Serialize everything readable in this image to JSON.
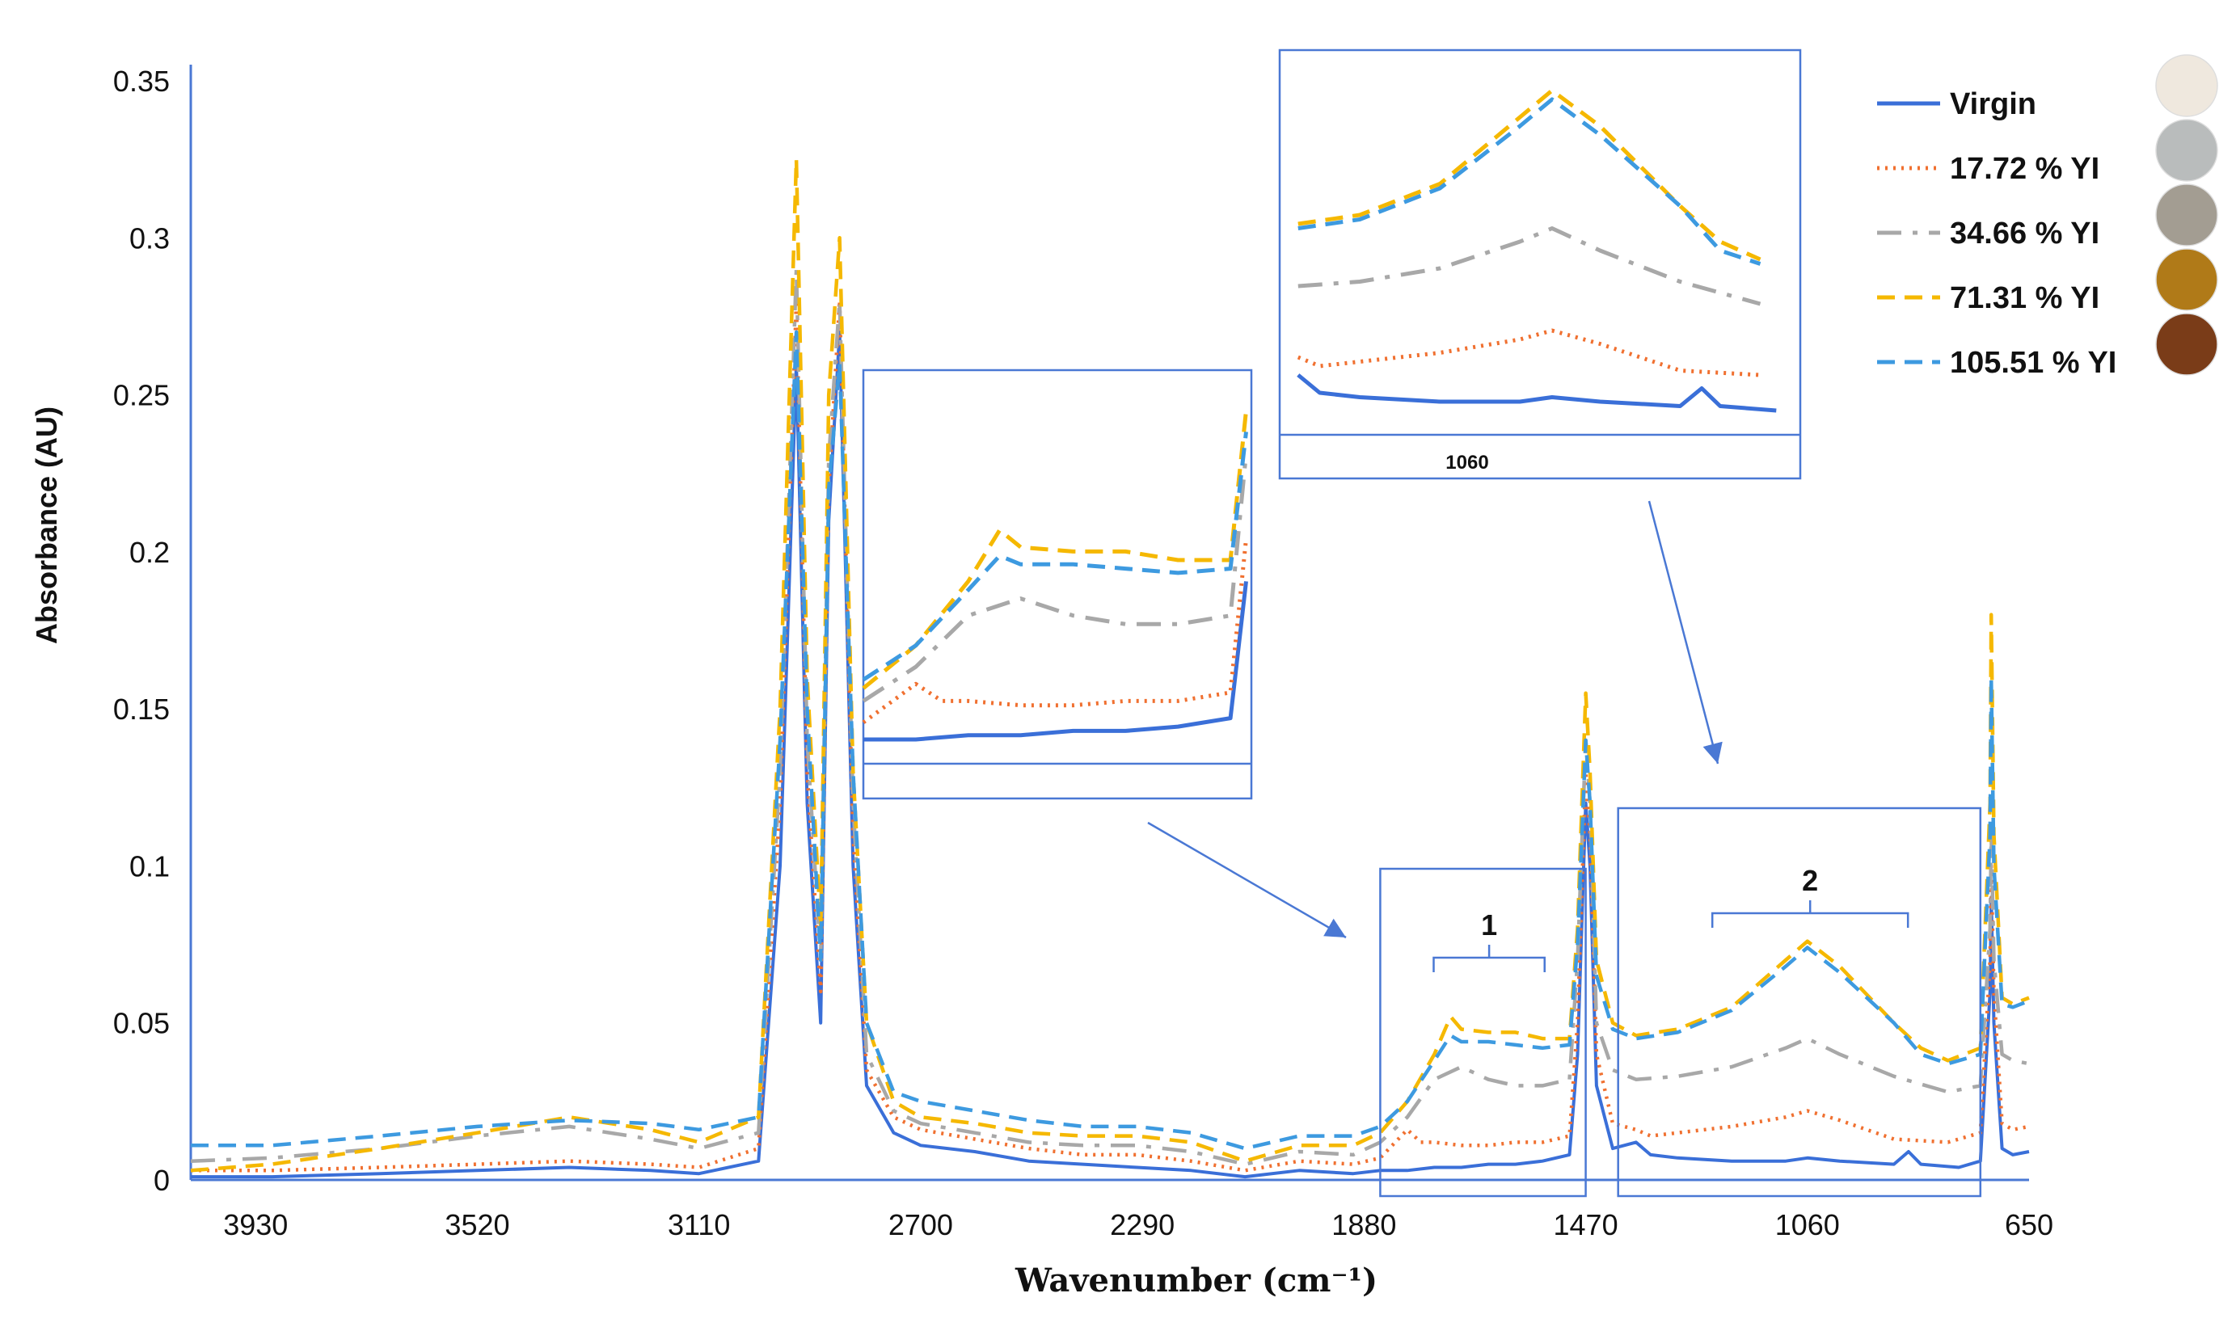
{
  "chart_data": {
    "type": "line",
    "title": "",
    "xlabel": "Wavenumber (cm⁻¹)",
    "ylabel": "Absorbance (AU)",
    "xlim": [
      4050,
      650
    ],
    "ylim": [
      0,
      0.35
    ],
    "x_reversed": true,
    "x_ticks": [
      3930,
      3520,
      3110,
      2700,
      2290,
      1880,
      1470,
      1060,
      650
    ],
    "y_ticks": [
      0,
      0.05,
      0.1,
      0.15,
      0.2,
      0.25,
      0.3,
      0.35
    ],
    "y_tick_labels": [
      "0",
      "0.05",
      "0.1",
      "0.15",
      "0.2",
      "0.25",
      "0.3",
      "0.35"
    ],
    "x_tick_labels": [
      "3930",
      "3520",
      "3110",
      "2700",
      "2290",
      "1880",
      "1470",
      "1060",
      "650"
    ],
    "legend_position": "top-right",
    "series": [
      {
        "name": "Virgin",
        "color": "#3a6fd8",
        "dash": "solid",
        "sample_color": "#efe8de",
        "points": [
          [
            4050,
            0.001
          ],
          [
            3900,
            0.001
          ],
          [
            3700,
            0.002
          ],
          [
            3520,
            0.003
          ],
          [
            3350,
            0.004
          ],
          [
            3200,
            0.003
          ],
          [
            3110,
            0.002
          ],
          [
            3000,
            0.006
          ],
          [
            2960,
            0.1
          ],
          [
            2930,
            0.26
          ],
          [
            2910,
            0.12
          ],
          [
            2885,
            0.05
          ],
          [
            2870,
            0.21
          ],
          [
            2850,
            0.27
          ],
          [
            2825,
            0.1
          ],
          [
            2800,
            0.03
          ],
          [
            2750,
            0.015
          ],
          [
            2700,
            0.011
          ],
          [
            2600,
            0.009
          ],
          [
            2500,
            0.006
          ],
          [
            2400,
            0.005
          ],
          [
            2300,
            0.004
          ],
          [
            2200,
            0.003
          ],
          [
            2100,
            0.001
          ],
          [
            2000,
            0.003
          ],
          [
            1900,
            0.002
          ],
          [
            1850,
            0.003
          ],
          [
            1800,
            0.003
          ],
          [
            1750,
            0.004
          ],
          [
            1700,
            0.004
          ],
          [
            1650,
            0.005
          ],
          [
            1600,
            0.005
          ],
          [
            1550,
            0.006
          ],
          [
            1500,
            0.008
          ],
          [
            1485,
            0.04
          ],
          [
            1470,
            0.12
          ],
          [
            1462,
            0.1
          ],
          [
            1450,
            0.03
          ],
          [
            1420,
            0.01
          ],
          [
            1377,
            0.012
          ],
          [
            1350,
            0.008
          ],
          [
            1300,
            0.007
          ],
          [
            1200,
            0.006
          ],
          [
            1100,
            0.006
          ],
          [
            1060,
            0.007
          ],
          [
            1000,
            0.006
          ],
          [
            900,
            0.005
          ],
          [
            873,
            0.009
          ],
          [
            850,
            0.005
          ],
          [
            780,
            0.004
          ],
          [
            740,
            0.006
          ],
          [
            722,
            0.06
          ],
          [
            720,
            0.09
          ],
          [
            715,
            0.05
          ],
          [
            700,
            0.01
          ],
          [
            680,
            0.008
          ],
          [
            650,
            0.009
          ]
        ]
      },
      {
        "name": "17.72 % YI",
        "color": "#f07030",
        "dash": "dotted",
        "sample_color": "#b9bcbc",
        "points": [
          [
            4050,
            0.003
          ],
          [
            3900,
            0.003
          ],
          [
            3700,
            0.004
          ],
          [
            3520,
            0.005
          ],
          [
            3350,
            0.006
          ],
          [
            3200,
            0.005
          ],
          [
            3110,
            0.004
          ],
          [
            3000,
            0.01
          ],
          [
            2960,
            0.12
          ],
          [
            2930,
            0.28
          ],
          [
            2910,
            0.13
          ],
          [
            2885,
            0.06
          ],
          [
            2870,
            0.22
          ],
          [
            2850,
            0.28
          ],
          [
            2825,
            0.11
          ],
          [
            2800,
            0.035
          ],
          [
            2750,
            0.02
          ],
          [
            2700,
            0.016
          ],
          [
            2600,
            0.013
          ],
          [
            2500,
            0.01
          ],
          [
            2400,
            0.008
          ],
          [
            2300,
            0.008
          ],
          [
            2200,
            0.006
          ],
          [
            2100,
            0.003
          ],
          [
            2000,
            0.006
          ],
          [
            1900,
            0.005
          ],
          [
            1850,
            0.007
          ],
          [
            1800,
            0.016
          ],
          [
            1775,
            0.012
          ],
          [
            1750,
            0.012
          ],
          [
            1700,
            0.011
          ],
          [
            1650,
            0.011
          ],
          [
            1600,
            0.012
          ],
          [
            1550,
            0.012
          ],
          [
            1500,
            0.014
          ],
          [
            1485,
            0.05
          ],
          [
            1470,
            0.13
          ],
          [
            1462,
            0.11
          ],
          [
            1450,
            0.04
          ],
          [
            1420,
            0.018
          ],
          [
            1377,
            0.016
          ],
          [
            1350,
            0.014
          ],
          [
            1300,
            0.015
          ],
          [
            1200,
            0.017
          ],
          [
            1100,
            0.02
          ],
          [
            1060,
            0.022
          ],
          [
            1000,
            0.019
          ],
          [
            900,
            0.013
          ],
          [
            800,
            0.012
          ],
          [
            740,
            0.015
          ],
          [
            722,
            0.07
          ],
          [
            720,
            0.1
          ],
          [
            715,
            0.06
          ],
          [
            700,
            0.018
          ],
          [
            680,
            0.016
          ],
          [
            650,
            0.017
          ]
        ]
      },
      {
        "name": "34.66 % YI",
        "color": "#a8a8a8",
        "dash": "longdash",
        "sample_color": "#a39d92",
        "points": [
          [
            4050,
            0.006
          ],
          [
            3900,
            0.007
          ],
          [
            3700,
            0.01
          ],
          [
            3520,
            0.014
          ],
          [
            3350,
            0.017
          ],
          [
            3200,
            0.013
          ],
          [
            3110,
            0.01
          ],
          [
            3000,
            0.015
          ],
          [
            2960,
            0.13
          ],
          [
            2930,
            0.29
          ],
          [
            2910,
            0.14
          ],
          [
            2885,
            0.07
          ],
          [
            2870,
            0.23
          ],
          [
            2850,
            0.28
          ],
          [
            2825,
            0.12
          ],
          [
            2800,
            0.04
          ],
          [
            2750,
            0.022
          ],
          [
            2700,
            0.018
          ],
          [
            2600,
            0.015
          ],
          [
            2500,
            0.012
          ],
          [
            2400,
            0.011
          ],
          [
            2300,
            0.011
          ],
          [
            2200,
            0.009
          ],
          [
            2100,
            0.005
          ],
          [
            2000,
            0.009
          ],
          [
            1900,
            0.008
          ],
          [
            1850,
            0.012
          ],
          [
            1800,
            0.02
          ],
          [
            1750,
            0.032
          ],
          [
            1700,
            0.036
          ],
          [
            1650,
            0.032
          ],
          [
            1600,
            0.03
          ],
          [
            1550,
            0.03
          ],
          [
            1500,
            0.032
          ],
          [
            1485,
            0.07
          ],
          [
            1470,
            0.14
          ],
          [
            1462,
            0.12
          ],
          [
            1450,
            0.05
          ],
          [
            1420,
            0.035
          ],
          [
            1377,
            0.032
          ],
          [
            1300,
            0.033
          ],
          [
            1200,
            0.036
          ],
          [
            1100,
            0.042
          ],
          [
            1060,
            0.045
          ],
          [
            1000,
            0.04
          ],
          [
            900,
            0.033
          ],
          [
            800,
            0.028
          ],
          [
            740,
            0.03
          ],
          [
            722,
            0.08
          ],
          [
            720,
            0.11
          ],
          [
            715,
            0.07
          ],
          [
            700,
            0.04
          ],
          [
            680,
            0.038
          ],
          [
            650,
            0.037
          ]
        ]
      },
      {
        "name": "71.31 % YI",
        "color": "#f5b800",
        "dash": "dashed",
        "sample_color": "#b07a18",
        "points": [
          [
            4050,
            0.003
          ],
          [
            3900,
            0.005
          ],
          [
            3700,
            0.01
          ],
          [
            3520,
            0.015
          ],
          [
            3350,
            0.02
          ],
          [
            3200,
            0.016
          ],
          [
            3110,
            0.012
          ],
          [
            3000,
            0.02
          ],
          [
            2960,
            0.15
          ],
          [
            2930,
            0.325
          ],
          [
            2910,
            0.16
          ],
          [
            2885,
            0.08
          ],
          [
            2870,
            0.25
          ],
          [
            2850,
            0.3
          ],
          [
            2825,
            0.13
          ],
          [
            2800,
            0.05
          ],
          [
            2750,
            0.025
          ],
          [
            2700,
            0.02
          ],
          [
            2600,
            0.018
          ],
          [
            2500,
            0.015
          ],
          [
            2400,
            0.014
          ],
          [
            2300,
            0.014
          ],
          [
            2200,
            0.012
          ],
          [
            2100,
            0.006
          ],
          [
            2000,
            0.011
          ],
          [
            1900,
            0.011
          ],
          [
            1850,
            0.015
          ],
          [
            1800,
            0.025
          ],
          [
            1750,
            0.04
          ],
          [
            1720,
            0.052
          ],
          [
            1700,
            0.048
          ],
          [
            1650,
            0.047
          ],
          [
            1600,
            0.047
          ],
          [
            1550,
            0.045
          ],
          [
            1500,
            0.045
          ],
          [
            1485,
            0.08
          ],
          [
            1470,
            0.155
          ],
          [
            1462,
            0.13
          ],
          [
            1450,
            0.07
          ],
          [
            1420,
            0.05
          ],
          [
            1377,
            0.046
          ],
          [
            1300,
            0.048
          ],
          [
            1200,
            0.055
          ],
          [
            1100,
            0.07
          ],
          [
            1060,
            0.076
          ],
          [
            1000,
            0.068
          ],
          [
            900,
            0.05
          ],
          [
            850,
            0.042
          ],
          [
            800,
            0.038
          ],
          [
            740,
            0.042
          ],
          [
            722,
            0.12
          ],
          [
            720,
            0.18
          ],
          [
            715,
            0.11
          ],
          [
            700,
            0.058
          ],
          [
            680,
            0.056
          ],
          [
            650,
            0.058
          ]
        ]
      },
      {
        "name": "105.51 % YI",
        "color": "#3d9ae0",
        "dash": "dashed",
        "sample_color": "#7a3c18",
        "points": [
          [
            4050,
            0.011
          ],
          [
            3900,
            0.011
          ],
          [
            3700,
            0.014
          ],
          [
            3520,
            0.017
          ],
          [
            3350,
            0.019
          ],
          [
            3200,
            0.018
          ],
          [
            3110,
            0.016
          ],
          [
            3000,
            0.02
          ],
          [
            2960,
            0.14
          ],
          [
            2930,
            0.27
          ],
          [
            2910,
            0.15
          ],
          [
            2885,
            0.07
          ],
          [
            2870,
            0.22
          ],
          [
            2850,
            0.26
          ],
          [
            2825,
            0.13
          ],
          [
            2800,
            0.05
          ],
          [
            2750,
            0.028
          ],
          [
            2700,
            0.025
          ],
          [
            2600,
            0.022
          ],
          [
            2500,
            0.019
          ],
          [
            2400,
            0.017
          ],
          [
            2300,
            0.017
          ],
          [
            2200,
            0.015
          ],
          [
            2100,
            0.01
          ],
          [
            2000,
            0.014
          ],
          [
            1900,
            0.014
          ],
          [
            1850,
            0.017
          ],
          [
            1800,
            0.025
          ],
          [
            1750,
            0.038
          ],
          [
            1720,
            0.046
          ],
          [
            1700,
            0.044
          ],
          [
            1650,
            0.044
          ],
          [
            1600,
            0.043
          ],
          [
            1550,
            0.042
          ],
          [
            1500,
            0.043
          ],
          [
            1485,
            0.075
          ],
          [
            1470,
            0.14
          ],
          [
            1462,
            0.12
          ],
          [
            1450,
            0.065
          ],
          [
            1420,
            0.048
          ],
          [
            1377,
            0.045
          ],
          [
            1300,
            0.047
          ],
          [
            1200,
            0.054
          ],
          [
            1100,
            0.068
          ],
          [
            1060,
            0.074
          ],
          [
            1000,
            0.066
          ],
          [
            900,
            0.05
          ],
          [
            850,
            0.04
          ],
          [
            800,
            0.037
          ],
          [
            740,
            0.04
          ],
          [
            722,
            0.11
          ],
          [
            720,
            0.16
          ],
          [
            715,
            0.1
          ],
          [
            700,
            0.056
          ],
          [
            680,
            0.055
          ],
          [
            650,
            0.057
          ]
        ]
      }
    ],
    "regions": [
      {
        "label": "1",
        "x_range": [
          1850,
          1470
        ]
      },
      {
        "label": "2",
        "x_range": [
          1410,
          740
        ]
      }
    ],
    "insets": [
      {
        "region": "1",
        "x_range": [
          1850,
          1480
        ],
        "tick_label": ""
      },
      {
        "region": "2",
        "x_range": [
          1400,
          750
        ],
        "tick_label": "1060"
      }
    ]
  }
}
